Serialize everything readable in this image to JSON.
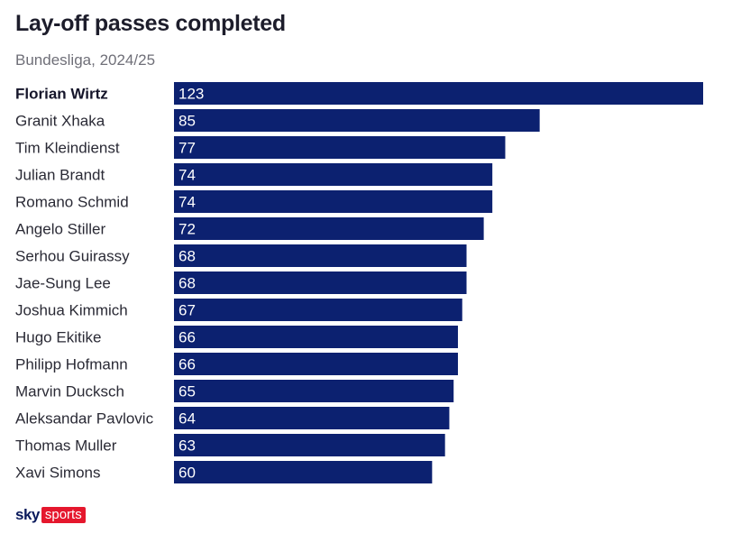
{
  "chart_data": {
    "type": "bar",
    "orientation": "horizontal",
    "title": "Lay-off passes completed",
    "subtitle": "Bundesliga, 2024/25",
    "categories": [
      "Florian Wirtz",
      "Granit Xhaka",
      "Tim Kleindienst",
      "Julian Brandt",
      "Romano Schmid",
      "Angelo Stiller",
      "Serhou Guirassy",
      "Jae-Sung Lee",
      "Joshua Kimmich",
      "Hugo Ekitike",
      "Philipp Hofmann",
      "Marvin Ducksch",
      "Aleksandar Pavlovic",
      "Thomas Muller",
      "Xavi Simons"
    ],
    "values": [
      123,
      85,
      77,
      74,
      74,
      72,
      68,
      68,
      67,
      66,
      66,
      65,
      64,
      63,
      60
    ],
    "xlim": [
      0,
      123
    ],
    "bar_color": "#0c2170",
    "value_label_color": "#ffffff",
    "grid": false,
    "legend": "none"
  },
  "logo": {
    "sky": "sky",
    "sports": "sports",
    "sports_bg": "#e5172d",
    "sky_color": "#0a1a5c"
  }
}
